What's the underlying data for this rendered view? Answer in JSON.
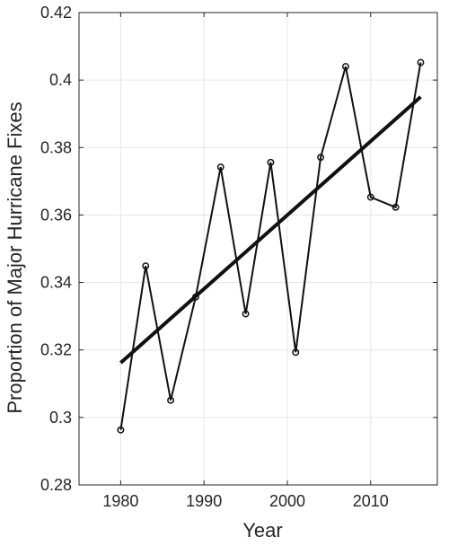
{
  "chart_data": {
    "type": "line",
    "title": "",
    "xlabel": "Year",
    "ylabel": "Proportion of Major Hurricane Fixes",
    "xlim": [
      1975,
      2018
    ],
    "ylim": [
      0.28,
      0.42
    ],
    "xticks": [
      1980,
      1990,
      2000,
      2010
    ],
    "yticks": [
      0.28,
      0.3,
      0.32,
      0.34,
      0.36,
      0.38,
      0.4,
      0.42
    ],
    "ytick_labels": [
      "0.28",
      "0.3",
      "0.32",
      "0.34",
      "0.36",
      "0.38",
      "0.4",
      "0.42"
    ],
    "grid": true,
    "series": [
      {
        "x": [
          1980,
          1983,
          1986,
          1989,
          1992,
          1995,
          1998,
          2001,
          2004,
          2007,
          2010,
          2013,
          2016
        ],
        "y": [
          0.2963,
          0.3449,
          0.3051,
          0.3357,
          0.3742,
          0.3307,
          0.3756,
          0.3193,
          0.3771,
          0.404,
          0.3653,
          0.3623,
          0.4052
        ],
        "marker": "circle-open",
        "color": "#111111"
      },
      {
        "x": [
          1980,
          2016
        ],
        "y": [
          0.3162,
          0.395
        ],
        "style": "trend",
        "color": "#111111"
      }
    ]
  }
}
